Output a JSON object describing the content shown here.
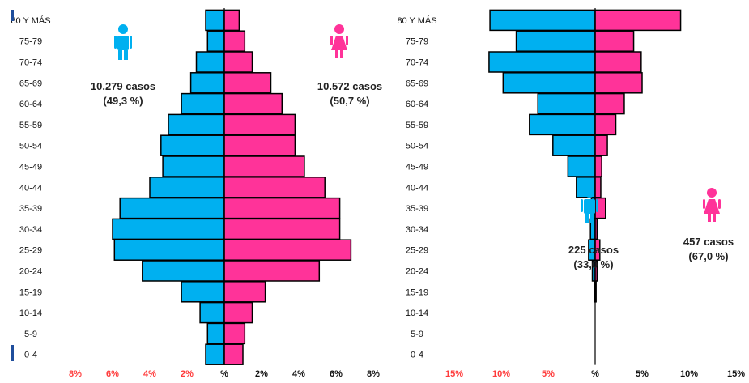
{
  "colors": {
    "male": "#00b0f0",
    "female": "#ff3399",
    "negative_tick": "#ff3b3b",
    "positive_tick": "#111111"
  },
  "chart_data": [
    {
      "type": "bar",
      "orientation": "horizontal-population-pyramid",
      "categories": [
        "0-4",
        "5-9",
        "10-14",
        "15-19",
        "20-24",
        "25-29",
        "30-34",
        "35-39",
        "40-44",
        "45-49",
        "50-54",
        "55-59",
        "60-64",
        "65-69",
        "70-74",
        "75-79",
        "80 Y MÁS"
      ],
      "xlim": [
        -8,
        8
      ],
      "x_ticks": [
        "8%",
        "6%",
        "4%",
        "2%",
        "%",
        "2%",
        "4%",
        "6%",
        "8%"
      ],
      "series": [
        {
          "values": [
            1.0,
            0.9,
            1.3,
            2.3,
            4.4,
            5.9,
            6.0,
            5.6,
            4.0,
            3.3,
            3.4,
            3.0,
            2.3,
            1.8,
            1.5,
            0.9,
            1.0
          ]
        },
        {
          "values": [
            1.0,
            1.1,
            1.5,
            2.2,
            5.1,
            6.8,
            6.2,
            6.2,
            5.4,
            4.3,
            3.8,
            3.8,
            3.1,
            2.5,
            1.5,
            1.1,
            0.8
          ]
        }
      ],
      "annotations": {
        "male": {
          "cases": "10.279 casos",
          "pct": "(49,3 %)"
        },
        "female": {
          "cases": "10.572 casos",
          "pct": "(50,7 %)"
        }
      }
    },
    {
      "type": "bar",
      "orientation": "horizontal-population-pyramid",
      "categories": [
        "0-4",
        "5-9",
        "10-14",
        "15-19",
        "20-24",
        "25-29",
        "30-34",
        "35-39",
        "40-44",
        "45-49",
        "50-54",
        "55-59",
        "60-64",
        "65-69",
        "70-74",
        "75-79",
        "80 Y MÁS"
      ],
      "xlim": [
        -15,
        15
      ],
      "x_ticks": [
        "15%",
        "10%",
        "5%",
        "%",
        "5%",
        "10%",
        "15%"
      ],
      "series": [
        {
          "values": [
            0,
            0,
            0,
            0.05,
            0.3,
            0.7,
            0.5,
            0.4,
            2.0,
            2.9,
            4.5,
            7.0,
            6.1,
            9.8,
            11.3,
            8.4,
            11.2
          ]
        },
        {
          "values": [
            0,
            0,
            0,
            0.1,
            0.2,
            0.5,
            0.2,
            1.1,
            0.6,
            0.7,
            1.3,
            2.2,
            3.1,
            5.0,
            4.9,
            4.1,
            9.1
          ]
        }
      ],
      "annotations": {
        "male": {
          "cases": "225 casos",
          "pct": "(33,0 %)"
        },
        "female": {
          "cases": "457 casos",
          "pct": "(67,0 %)"
        }
      }
    }
  ]
}
